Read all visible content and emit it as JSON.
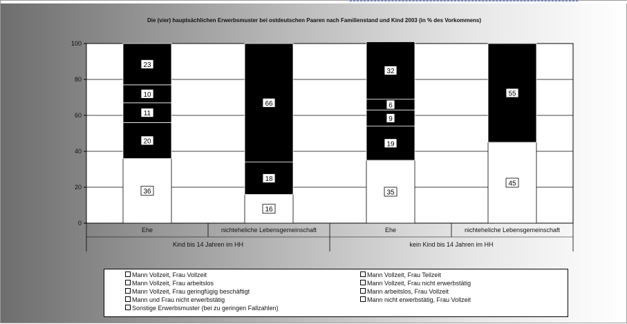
{
  "chart_data": {
    "type": "bar",
    "stacked": true,
    "title": "Die (vier) hauptsächlichen Erwerbsmuster bei ostdeutschen Paaren nach Familienstand und Kind 2003 (in % des Vorkommens)",
    "ylim": [
      0,
      100
    ],
    "yticks": [
      "0",
      "20",
      "40",
      "60",
      "80",
      "100"
    ],
    "categories": [
      "Ehe",
      "nichteheliche Lebensgemeinschaft",
      "Ehe",
      "nichteheliche Lebensgemeinschaft"
    ],
    "groups": [
      {
        "label": "Kind bis 14 Jahren im HH",
        "span": [
          0,
          1
        ]
      },
      {
        "label": "kein Kind bis 14 Jahren im HH",
        "span": [
          2,
          3
        ]
      }
    ],
    "bars": [
      {
        "category": "Ehe",
        "segments": [
          {
            "value": 36,
            "label": "36",
            "fill": "#ffffff"
          },
          {
            "value": 20,
            "label": "20",
            "fill": "#000000"
          },
          {
            "value": 11,
            "label": "11",
            "fill": "#000000"
          },
          {
            "value": 10,
            "label": "10",
            "fill": "#000000"
          },
          {
            "value": 23,
            "label": "23",
            "fill": "#000000"
          }
        ]
      },
      {
        "category": "nichteheliche Lebensgemeinschaft",
        "segments": [
          {
            "value": 16,
            "label": "16",
            "fill": "#ffffff"
          },
          {
            "value": 18,
            "label": "18",
            "fill": "#000000"
          },
          {
            "value": 66,
            "label": "66",
            "fill": "#000000"
          }
        ]
      },
      {
        "category": "Ehe",
        "segments": [
          {
            "value": 35,
            "label": "35",
            "fill": "#ffffff"
          },
          {
            "value": 19,
            "label": "19",
            "fill": "#000000"
          },
          {
            "value": 9,
            "label": "9",
            "fill": "#000000"
          },
          {
            "value": 6,
            "label": "6",
            "fill": "#000000"
          },
          {
            "value": 32,
            "label": "32",
            "fill": "#000000"
          }
        ]
      },
      {
        "category": "nichteheliche Lebensgemeinschaft",
        "segments": [
          {
            "value": 45,
            "label": "45",
            "fill": "#ffffff"
          },
          {
            "value": 55,
            "label": "55",
            "fill": "#000000"
          }
        ]
      }
    ],
    "legend": [
      "Mann Vollzeit, Frau Vollzeit",
      "Mann Vollzeit, Frau Teilzeit",
      "Mann Vollzeit, Frau arbeitslos",
      "Mann Vollzeit, Frau nicht erwerbstätig",
      "Mann Vollzeit, Frau geringfügig beschäftigt",
      "Mann arbeitslos, Frau Vollzeit",
      "Mann und Frau nicht erwerbstätig",
      "Mann nicht erwerbstätig, Frau Vollzeit",
      "Sonstige Erwerbsmuster (bei zu geringen Fallzahlen)"
    ],
    "legend_placement": "bottom",
    "grid": true
  }
}
